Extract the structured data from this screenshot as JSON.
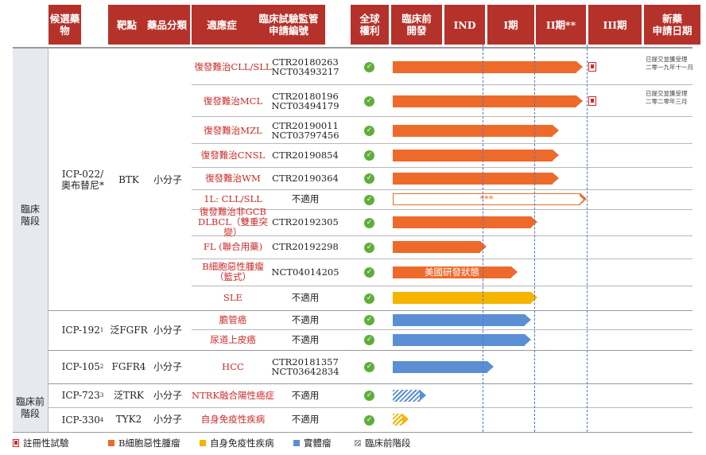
{
  "headers": [
    "候選藥物",
    "靶點",
    "藥品分類",
    "適應症",
    "臨床試驗監管\n申請編號",
    "全球\n權利",
    "臨床前\n開發",
    "IND",
    "I期",
    "II期**",
    "III期",
    "新藥\n申請日期"
  ],
  "groups": {
    "clinical": "臨床\n階段",
    "preclinical": "臨床前\n階段"
  },
  "drugs": [
    {
      "name": "ICP-022/\n奧布替尼*",
      "target": "BTK",
      "class": "小分子"
    },
    {
      "name": "ICP-192",
      "sup": "1",
      "target": "泛FGFR",
      "class": "小分子"
    },
    {
      "name": "ICP-105",
      "sup": "2",
      "target": "FGFR4",
      "class": "小分子"
    },
    {
      "name": "ICP-723",
      "sup": "3",
      "target": "泛TRK",
      "class": "小分子"
    },
    {
      "name": "ICP-330",
      "sup": "4",
      "target": "TYK2",
      "class": "小分子"
    }
  ],
  "rows": [
    {
      "indication": "復發難治CLL/SLL",
      "reg": "CTR20180263\nNCT03493217",
      "rights": "check",
      "color": "orange",
      "progress": "III期",
      "registrational": true,
      "note": "已提交並獲受理\n二零一九年十一月"
    },
    {
      "indication": "復發難治MCL",
      "reg": "CTR20180196\nNCT03494179",
      "rights": "check",
      "color": "orange",
      "progress": "III期",
      "registrational": true,
      "note": "已提交並獲受理\n二零二零年三月"
    },
    {
      "indication": "復發難治MZL",
      "reg": "CTR20190011\nNCT03797456",
      "rights": "check",
      "color": "orange",
      "progress": "II期"
    },
    {
      "indication": "復發難治CNSL",
      "reg": "CTR20190854",
      "rights": "check",
      "color": "orange",
      "progress": "II期"
    },
    {
      "indication": "復發難治WM",
      "reg": "CTR20190364",
      "rights": "check",
      "color": "orange",
      "progress": "II期"
    },
    {
      "indication": "1L: CLL/SLL",
      "reg": "不適用",
      "rights": "check",
      "color": "orange",
      "progress": "III期",
      "outline": true,
      "label": "***"
    },
    {
      "indication": "復發難治非GCB\nDLBCL（雙重突變）",
      "reg": "CTR20192305",
      "rights": "check",
      "color": "orange",
      "progress": "II期"
    },
    {
      "indication": "FL (聯合用藥)",
      "reg": "CTR20192298",
      "rights": "check",
      "color": "orange",
      "progress": "I期"
    },
    {
      "indication": "B細胞惡性腫瘤\n（籃式）",
      "reg": "NCT04014205",
      "rights": "check",
      "color": "orange",
      "progress": "I期",
      "label": "美國研發狀態"
    },
    {
      "indication": "SLE",
      "reg": "不適用",
      "rights": "check",
      "color": "yellow",
      "progress": "II期"
    },
    {
      "indication": "膽管癌",
      "reg": "不適用",
      "rights": "check",
      "color": "blue",
      "progress": "II期"
    },
    {
      "indication": "尿道上皮癌",
      "reg": "不適用",
      "rights": "check",
      "color": "blue",
      "progress": "II期"
    },
    {
      "indication": "HCC",
      "reg": "CTR20181357\nNCT03642834",
      "rights": "check",
      "color": "blue",
      "progress": "I期"
    },
    {
      "indication": "NTRK融合陽性癌症",
      "reg": "不適用",
      "rights": "check",
      "color": "blue",
      "progress": "臨床前開發",
      "hatched": true
    },
    {
      "indication": "自身免疫性疾病",
      "reg": "不適用",
      "rights": "check",
      "color": "yellow",
      "progress": "臨床前開發",
      "hatched": true
    }
  ],
  "legend": [
    {
      "icon": "registrational-flag",
      "label": "註冊性試驗"
    },
    {
      "icon": "orange-square",
      "color": "#ee6a2b",
      "label": "B細胞惡性腫瘤"
    },
    {
      "icon": "yellow-square",
      "color": "#f4b400",
      "label": "自身免疫性疾病"
    },
    {
      "icon": "blue-square",
      "color": "#5b8fd4",
      "label": "實體瘤"
    },
    {
      "icon": "hatched-square",
      "label": "臨床前階段"
    }
  ],
  "colors": {
    "header": "#b5322b",
    "orange": "#ee6a2b",
    "yellow": "#f4b400",
    "blue": "#5b8fd4",
    "indication_text": "#cc2a28",
    "check": "#5fae3b",
    "phase_divider": "#4a78c8"
  }
}
